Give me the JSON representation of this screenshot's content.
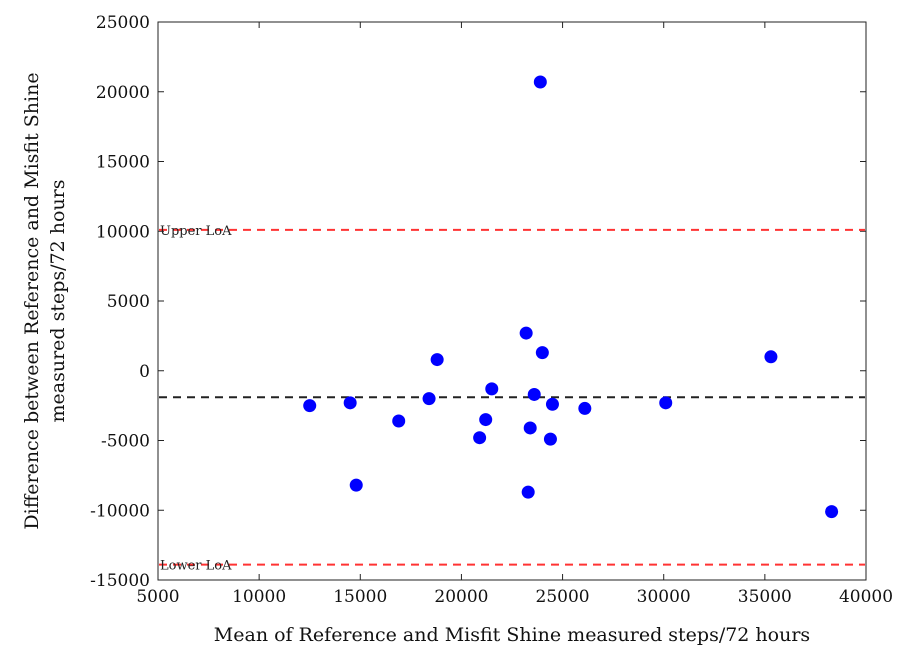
{
  "chart_data": {
    "type": "scatter",
    "title": "",
    "xlabel": "Mean of Reference and Misfit Shine measured steps/72 hours",
    "ylabel": "Difference between Reference and Misfit Shine measured steps/72 hours",
    "xlim": [
      5000,
      40000
    ],
    "ylim": [
      -15000,
      25000
    ],
    "xticks": [
      5000,
      10000,
      15000,
      20000,
      25000,
      30000,
      35000,
      40000
    ],
    "yticks": [
      -15000,
      -10000,
      -5000,
      0,
      5000,
      10000,
      15000,
      20000,
      25000
    ],
    "xtick_labels": [
      "5000",
      "10000",
      "15000",
      "20000",
      "25000",
      "30000",
      "35000",
      "40000"
    ],
    "ytick_labels": [
      "-15000",
      "-10000",
      "-5000",
      "0",
      "5000",
      "10000",
      "15000",
      "20000",
      "25000"
    ],
    "grid": false,
    "points": {
      "x": [
        23900,
        23200,
        18800,
        24000,
        35300,
        12500,
        14500,
        18400,
        21500,
        23600,
        24500,
        26100,
        30100,
        16900,
        21200,
        20900,
        23400,
        24400,
        14800,
        23300,
        38300
      ],
      "y": [
        20700,
        2700,
        800,
        1300,
        1000,
        -2500,
        -2300,
        -2000,
        -1300,
        -1700,
        -2400,
        -2700,
        -2300,
        -3600,
        -3500,
        -4800,
        -4100,
        -4900,
        -8200,
        -8700,
        -10100
      ],
      "color": "#0000ff"
    },
    "reference_lines": [
      {
        "name": "Upper LoA",
        "y": 10100,
        "color": "#ff3333",
        "style": "dashed"
      },
      {
        "name": "Mean difference",
        "y": -1900,
        "color": "#222222",
        "style": "dashed"
      },
      {
        "name": "Lower LoA",
        "y": -13900,
        "color": "#ff3333",
        "style": "dashed"
      }
    ],
    "annotations": {
      "upper_loa": "Upper LoA",
      "lower_loa": "Lower LoA"
    }
  }
}
